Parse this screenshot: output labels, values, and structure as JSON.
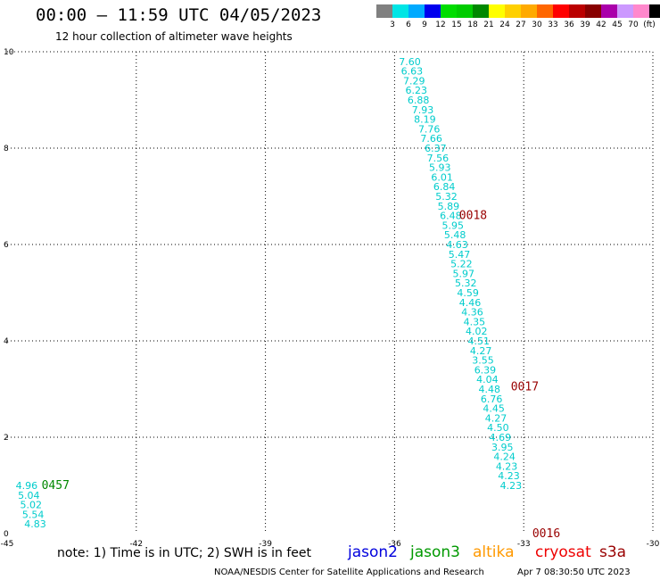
{
  "title": "00:00 – 11:59 UTC 04/05/2023",
  "subtitle": "12 hour collection of altimeter wave heights",
  "colorbar": {
    "labels": [
      "3",
      "6",
      "9",
      "12",
      "15",
      "18",
      "21",
      "24",
      "27",
      "30",
      "33",
      "36",
      "39",
      "42",
      "45",
      "70",
      "(ft)"
    ],
    "colors": [
      "#808080",
      "#00e5e5",
      "#00aaff",
      "#0000ee",
      "#00dd00",
      "#00cc00",
      "#008800",
      "#ffff00",
      "#ffd000",
      "#ffaa00",
      "#ff6600",
      "#ff0000",
      "#bb0000",
      "#880000",
      "#aa00aa",
      "#cc99ff",
      "#ff88cc",
      "#000000"
    ]
  },
  "note": "note:  1) Time is in UTC; 2) SWH is in feet",
  "satellites": [
    {
      "name": "jason2",
      "color": "#0000dd"
    },
    {
      "name": "jason3",
      "color": "#009900"
    },
    {
      "name": "altika",
      "color": "#ff9900"
    },
    {
      "name": "cryosat",
      "color": "#ee0000"
    },
    {
      "name": "s3a",
      "color": "#990000"
    }
  ],
  "footer_center": "NOAA/NESDIS Center for Satellite Applications and Research",
  "footer_right": "Apr  7 08:30:50 UTC 2023",
  "chart_data": {
    "type": "scatter",
    "title": "00:00 – 11:59 UTC 04/05/2023",
    "subtitle": "12 hour collection of altimeter wave heights",
    "xlim": [
      -45,
      -30
    ],
    "ylim": [
      0,
      10
    ],
    "x_ticks": [
      -45,
      -42,
      -39,
      -36,
      -33,
      -30
    ],
    "x_tick_labels": [
      "-45",
      "-42",
      "-39",
      "-36",
      "-33",
      "-30"
    ],
    "y_ticks": [
      0,
      2,
      4,
      6,
      8,
      10
    ],
    "y_tick_labels": [
      "0",
      "2",
      "4",
      "6",
      "8",
      "10"
    ],
    "grid": true,
    "series": [
      {
        "color": "#00cccc",
        "x": [
          -35.9,
          -35.85,
          -35.8,
          -35.75,
          -35.7,
          -35.6,
          -35.55,
          -35.45,
          -35.4,
          -35.3,
          -35.25,
          -35.2,
          -35.15,
          -35.1,
          -35.05,
          -35.0,
          -34.95,
          -34.9,
          -34.85,
          -34.8,
          -34.75,
          -34.7,
          -34.65,
          -34.6,
          -34.55,
          -34.5,
          -34.45,
          -34.4,
          -34.35,
          -34.3,
          -34.25,
          -34.2,
          -34.15,
          -34.1,
          -34.05,
          -34.0,
          -33.95,
          -33.9,
          -33.85,
          -33.8,
          -33.75,
          -33.7,
          -33.65,
          -33.6,
          -33.55
        ],
        "y": [
          9.8,
          9.6,
          9.4,
          9.2,
          9.0,
          8.8,
          8.6,
          8.4,
          8.2,
          8.0,
          7.8,
          7.6,
          7.4,
          7.2,
          7.0,
          6.8,
          6.6,
          6.4,
          6.2,
          6.0,
          5.8,
          5.6,
          5.4,
          5.2,
          5.0,
          4.8,
          4.6,
          4.4,
          4.2,
          4.0,
          3.8,
          3.6,
          3.4,
          3.2,
          3.0,
          2.8,
          2.6,
          2.4,
          2.2,
          2.0,
          1.8,
          1.6,
          1.4,
          1.2,
          1.0
        ],
        "labels": [
          "7.60",
          "6.63",
          "7.29",
          "6.23",
          "6.88",
          "7.93",
          "8.19",
          "7.76",
          "7.66",
          "6.37",
          "7.56",
          "5.93",
          "6.01",
          "6.84",
          "5.32",
          "5.89",
          "6.48",
          "5.95",
          "5.48",
          "4.63",
          "5.47",
          "5.22",
          "5.97",
          "5.32",
          "4.59",
          "4.46",
          "4.36",
          "4.35",
          "4.02",
          "4.51",
          "4.27",
          "3.55",
          "6.39",
          "4.04",
          "4.48",
          "6.76",
          "4.45",
          "4.27",
          "4.50",
          "4.69",
          "3.95",
          "4.24",
          "4.23",
          "4.23",
          "4.23"
        ]
      },
      {
        "color": "#00cccc",
        "x": [
          -44.8,
          -44.75,
          -44.7,
          -44.65,
          -44.6
        ],
        "y": [
          1.0,
          0.8,
          0.6,
          0.4,
          0.2
        ],
        "labels": [
          "4.96",
          "5.04",
          "5.02",
          "5.54",
          "4.83"
        ]
      }
    ],
    "annotations": [
      {
        "text": "0018",
        "x": -34.5,
        "y": 6.6,
        "color": "#990000"
      },
      {
        "text": "0017",
        "x": -33.3,
        "y": 3.05,
        "color": "#990000"
      },
      {
        "text": "0016",
        "x": -32.8,
        "y": 0.0,
        "color": "#990000"
      },
      {
        "text": "0457",
        "x": -44.2,
        "y": 1.0,
        "color": "#008800"
      }
    ]
  }
}
